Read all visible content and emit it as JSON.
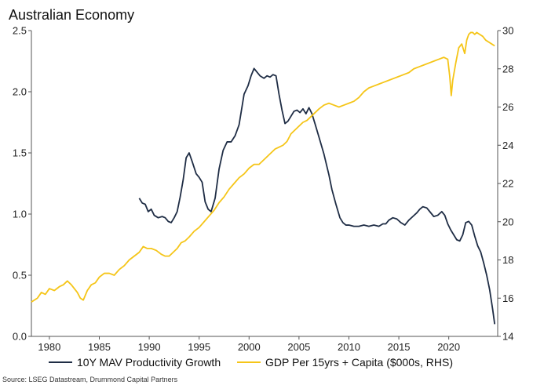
{
  "chart_data": {
    "type": "line",
    "title": "Australian Economy",
    "source": "Source: LSEG Datastream, Drummond Capital Partners",
    "x_ticks": [
      "1980",
      "1985",
      "1990",
      "1995",
      "2000",
      "2005",
      "2010",
      "2015",
      "2020"
    ],
    "x_tick_values": [
      1980,
      1985,
      1990,
      1995,
      2000,
      2005,
      2010,
      2015,
      2020
    ],
    "xlim": [
      1978.2,
      2024.9
    ],
    "left_axis": {
      "ylim": [
        0,
        2.5
      ],
      "ticks": [
        "0.0",
        "0.5",
        "1.0",
        "1.5",
        "2.0",
        "2.5"
      ],
      "tick_values": [
        0,
        0.5,
        1.0,
        1.5,
        2.0,
        2.5
      ]
    },
    "right_axis": {
      "ylim": [
        14,
        30
      ],
      "ticks": [
        "14",
        "16",
        "18",
        "20",
        "22",
        "24",
        "26",
        "28",
        "30"
      ],
      "tick_values": [
        14,
        16,
        18,
        20,
        22,
        24,
        26,
        28,
        30
      ]
    },
    "grid": false,
    "legend_position": "bottom",
    "series": [
      {
        "name": "10Y MAV Productivity Growth",
        "axis": "left",
        "color": "#1f2d45",
        "x": [
          1989.0,
          1989.3,
          1989.6,
          1989.9,
          1990.2,
          1990.5,
          1990.9,
          1991.3,
          1991.6,
          1991.9,
          1992.2,
          1992.5,
          1992.8,
          1993.1,
          1993.4,
          1993.7,
          1994.0,
          1994.3,
          1994.7,
          1995.0,
          1995.3,
          1995.6,
          1995.9,
          1996.2,
          1996.6,
          1997.0,
          1997.4,
          1997.8,
          1998.2,
          1998.6,
          1999.0,
          1999.5,
          1999.9,
          2000.2,
          2000.5,
          2000.8,
          2001.1,
          2001.5,
          2001.8,
          2002.1,
          2002.4,
          2002.7,
          2003.0,
          2003.3,
          2003.6,
          2003.9,
          2004.2,
          2004.5,
          2004.8,
          2005.1,
          2005.4,
          2005.7,
          2006.0,
          2006.3,
          2006.6,
          2007.0,
          2007.5,
          2008.0,
          2008.3,
          2008.7,
          2009.1,
          2009.4,
          2009.7,
          2010.0,
          2010.5,
          2011.0,
          2011.5,
          2012.0,
          2012.5,
          2013.0,
          2013.4,
          2013.7,
          2014.0,
          2014.4,
          2014.8,
          2015.2,
          2015.6,
          2016.0,
          2016.4,
          2016.8,
          2017.1,
          2017.4,
          2017.8,
          2018.1,
          2018.5,
          2018.9,
          2019.3,
          2019.6,
          2019.9,
          2020.2,
          2020.5,
          2020.8,
          2021.1,
          2021.4,
          2021.7,
          2022.0,
          2022.3,
          2022.6,
          2022.9,
          2023.2,
          2023.5,
          2023.8,
          2024.1,
          2024.4,
          2024.6
        ],
        "values": [
          1.13,
          1.09,
          1.08,
          1.02,
          1.04,
          0.99,
          0.97,
          0.98,
          0.97,
          0.94,
          0.93,
          0.97,
          1.02,
          1.14,
          1.28,
          1.46,
          1.5,
          1.43,
          1.33,
          1.3,
          1.26,
          1.1,
          1.04,
          1.02,
          1.13,
          1.37,
          1.52,
          1.59,
          1.59,
          1.64,
          1.73,
          1.98,
          2.05,
          2.13,
          2.19,
          2.16,
          2.13,
          2.11,
          2.13,
          2.12,
          2.14,
          2.13,
          1.98,
          1.85,
          1.74,
          1.76,
          1.8,
          1.84,
          1.85,
          1.83,
          1.86,
          1.82,
          1.87,
          1.82,
          1.74,
          1.63,
          1.49,
          1.32,
          1.2,
          1.08,
          0.97,
          0.93,
          0.91,
          0.91,
          0.9,
          0.9,
          0.91,
          0.9,
          0.91,
          0.9,
          0.92,
          0.92,
          0.95,
          0.97,
          0.96,
          0.93,
          0.91,
          0.95,
          0.98,
          1.01,
          1.04,
          1.06,
          1.05,
          1.02,
          0.98,
          0.99,
          1.02,
          0.99,
          0.92,
          0.87,
          0.83,
          0.79,
          0.78,
          0.83,
          0.93,
          0.94,
          0.91,
          0.82,
          0.74,
          0.69,
          0.6,
          0.5,
          0.38,
          0.22,
          0.1
        ]
      },
      {
        "name": "GDP Per 15yrs + Capita ($000s, RHS)",
        "axis": "right",
        "color": "#f5c518",
        "x": [
          1978.2,
          1978.8,
          1979.2,
          1979.6,
          1980.0,
          1980.5,
          1981.0,
          1981.4,
          1981.8,
          1982.2,
          1982.5,
          1982.8,
          1983.1,
          1983.4,
          1983.8,
          1984.2,
          1984.6,
          1985.0,
          1985.5,
          1986.0,
          1986.5,
          1987.0,
          1987.5,
          1988.0,
          1988.5,
          1989.0,
          1989.4,
          1989.8,
          1990.2,
          1990.7,
          1991.2,
          1991.6,
          1992.0,
          1992.4,
          1992.8,
          1993.2,
          1993.6,
          1994.0,
          1994.5,
          1995.0,
          1995.5,
          1996.0,
          1996.5,
          1997.0,
          1997.5,
          1998.0,
          1998.5,
          1999.0,
          1999.5,
          2000.0,
          2000.5,
          2001.0,
          2001.4,
          2001.8,
          2002.2,
          2002.6,
          2003.0,
          2003.4,
          2003.8,
          2004.2,
          2004.6,
          2005.0,
          2005.4,
          2005.8,
          2006.2,
          2006.6,
          2007.0,
          2007.5,
          2008.0,
          2008.5,
          2009.0,
          2009.5,
          2010.0,
          2010.5,
          2011.0,
          2011.5,
          2012.0,
          2012.5,
          2013.0,
          2013.5,
          2014.0,
          2014.5,
          2015.0,
          2015.5,
          2016.0,
          2016.5,
          2017.0,
          2017.5,
          2018.0,
          2018.5,
          2019.0,
          2019.5,
          2019.9,
          2020.1,
          2020.25,
          2020.4,
          2020.7,
          2021.0,
          2021.3,
          2021.6,
          2021.8,
          2022.0,
          2022.2,
          2022.4,
          2022.6,
          2022.8,
          2023.1,
          2023.4,
          2023.7,
          2024.0,
          2024.3,
          2024.6
        ],
        "values": [
          15.8,
          16.0,
          16.3,
          16.2,
          16.5,
          16.4,
          16.6,
          16.7,
          16.9,
          16.7,
          16.5,
          16.3,
          16.0,
          15.9,
          16.4,
          16.7,
          16.8,
          17.1,
          17.3,
          17.3,
          17.2,
          17.5,
          17.7,
          18.0,
          18.2,
          18.4,
          18.7,
          18.6,
          18.6,
          18.5,
          18.3,
          18.2,
          18.2,
          18.4,
          18.6,
          18.9,
          19.0,
          19.2,
          19.5,
          19.7,
          20.0,
          20.3,
          20.6,
          21.0,
          21.3,
          21.7,
          22.0,
          22.3,
          22.5,
          22.8,
          23.0,
          23.0,
          23.2,
          23.4,
          23.6,
          23.8,
          23.9,
          24.0,
          24.2,
          24.6,
          24.8,
          25.0,
          25.2,
          25.3,
          25.5,
          25.7,
          25.9,
          26.1,
          26.2,
          26.1,
          26.0,
          26.1,
          26.2,
          26.3,
          26.5,
          26.8,
          27.0,
          27.1,
          27.2,
          27.3,
          27.4,
          27.5,
          27.6,
          27.7,
          27.8,
          28.0,
          28.1,
          28.2,
          28.3,
          28.4,
          28.5,
          28.6,
          28.5,
          27.6,
          26.6,
          27.4,
          28.3,
          29.1,
          29.3,
          28.8,
          29.5,
          29.8,
          29.9,
          29.9,
          29.8,
          29.9,
          29.8,
          29.7,
          29.5,
          29.4,
          29.3,
          29.2
        ]
      }
    ]
  }
}
